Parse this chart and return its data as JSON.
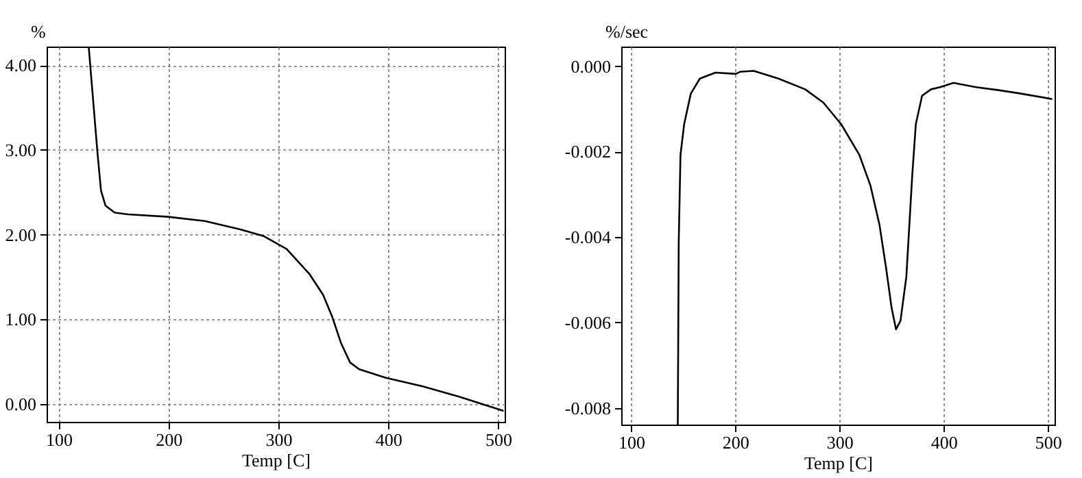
{
  "chart_data": [
    {
      "type": "line",
      "xlabel": "Temp  [C]",
      "ylabel": "%",
      "xlim": [
        89,
        506
      ],
      "ylim": [
        -0.21,
        4.22
      ],
      "xticks": [
        100,
        200,
        300,
        400,
        500
      ],
      "yticks": [
        {
          "value": 0,
          "label": "0.00"
        },
        {
          "value": 1,
          "label": "1.00"
        },
        {
          "value": 2,
          "label": "2.00"
        },
        {
          "value": 3,
          "label": "3.00"
        },
        {
          "value": 4,
          "label": "4.00"
        }
      ],
      "grid": true,
      "series": [
        {
          "color": "#000000",
          "x": [
            127.3,
            135.2,
            138.5,
            142.7,
            151,
            163,
            200,
            233,
            266,
            287,
            307.5,
            328,
            340.7,
            349,
            357,
            365.3,
            373.6,
            398,
            431,
            464,
            505
          ],
          "values": [
            4.22,
            2.98,
            2.52,
            2.34,
            2.26,
            2.24,
            2.21,
            2.16,
            2.06,
            1.98,
            1.83,
            1.54,
            1.29,
            1.03,
            0.72,
            0.49,
            0.41,
            0.31,
            0.21,
            0.09,
            -0.08
          ]
        }
      ]
    },
    {
      "type": "line",
      "xlabel": "Temp  [C]",
      "ylabel": "%/sec",
      "xlim": [
        90.5,
        506.5
      ],
      "ylim": [
        -0.00839,
        0.00046
      ],
      "xticks": [
        100,
        200,
        300,
        400,
        500
      ],
      "yticks": [
        {
          "value": 0,
          "label": "0.000"
        },
        {
          "value": -0.002,
          "label": "-0.002"
        },
        {
          "value": -0.004,
          "label": "-0.004"
        },
        {
          "value": -0.006,
          "label": "-0.006"
        },
        {
          "value": -0.008,
          "label": "-0.008"
        }
      ],
      "grid": "x",
      "series": [
        {
          "color": "#000000",
          "x": [
            144.8,
            145.7,
            147.4,
            150.9,
            157.3,
            166,
            181,
            200.4,
            204.7,
            217.7,
            241.4,
            267,
            284.5,
            301.7,
            319,
            329.7,
            338.4,
            344.8,
            350,
            354.3,
            358.6,
            364.2,
            369.8,
            373.3,
            379.3,
            388,
            396.6,
            409.5,
            431,
            452.6,
            474,
            504.3
          ],
          "values": [
            -0.00839,
            -0.00412,
            -0.00207,
            -0.00136,
            -0.00064,
            -0.00029,
            -0.00015,
            -0.00018,
            -0.00013,
            -0.00011,
            -0.00029,
            -0.00054,
            -0.00085,
            -0.00136,
            -0.00207,
            -0.00279,
            -0.00371,
            -0.00473,
            -0.00565,
            -0.00616,
            -0.00596,
            -0.00493,
            -0.00258,
            -0.00136,
            -0.00069,
            -0.00054,
            -0.00049,
            -0.00039,
            -0.00049,
            -0.00056,
            -0.00064,
            -0.00077
          ]
        }
      ]
    }
  ]
}
